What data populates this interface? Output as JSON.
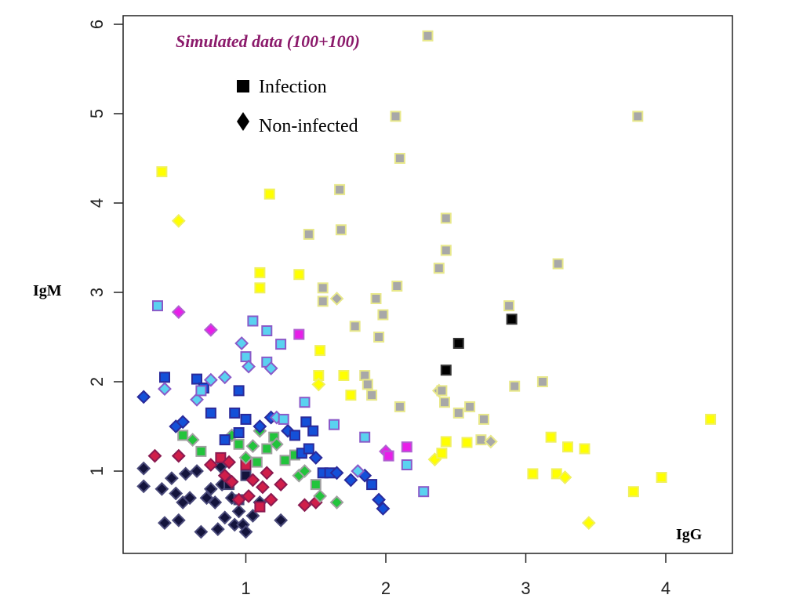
{
  "chart_data": {
    "type": "scatter",
    "title": "Simulated data (100+100)",
    "xlabel": "IgG",
    "ylabel": "IgM",
    "xlim": [
      0.2,
      4.5
    ],
    "ylim": [
      0.1,
      6.1
    ],
    "xticks": [
      "1",
      "2",
      "3",
      "4"
    ],
    "yticks": [
      "1",
      "2",
      "3",
      "4",
      "5",
      "6"
    ],
    "grid": false,
    "legend_placement": "top-center",
    "legend": [
      {
        "label": "Infection",
        "marker": "square",
        "color": "#000000"
      },
      {
        "label": "Non-infected",
        "marker": "diamond",
        "color": "#000000"
      }
    ],
    "colors": {
      "navy": "#14143c",
      "crimson": "#d01e4a",
      "magenta": "#e81ee8",
      "green": "#22c43c",
      "blue": "#1450d8",
      "cyan": "#5ad2f0",
      "yellow": "#ffff00",
      "gray": "#a8a8a8",
      "black": "#000000"
    },
    "points": [
      {
        "x": 0.27,
        "y": 1.03,
        "m": "d",
        "c": "navy"
      },
      {
        "x": 0.27,
        "y": 0.83,
        "m": "d",
        "c": "navy"
      },
      {
        "x": 0.4,
        "y": 0.8,
        "m": "d",
        "c": "navy"
      },
      {
        "x": 0.42,
        "y": 0.42,
        "m": "d",
        "c": "navy"
      },
      {
        "x": 0.47,
        "y": 0.92,
        "m": "d",
        "c": "navy"
      },
      {
        "x": 0.5,
        "y": 0.75,
        "m": "d",
        "c": "navy"
      },
      {
        "x": 0.52,
        "y": 0.45,
        "m": "d",
        "c": "navy"
      },
      {
        "x": 0.55,
        "y": 0.65,
        "m": "d",
        "c": "navy"
      },
      {
        "x": 0.57,
        "y": 0.97,
        "m": "d",
        "c": "navy"
      },
      {
        "x": 0.6,
        "y": 0.7,
        "m": "d",
        "c": "navy"
      },
      {
        "x": 0.65,
        "y": 1.0,
        "m": "d",
        "c": "navy"
      },
      {
        "x": 0.68,
        "y": 0.32,
        "m": "d",
        "c": "navy"
      },
      {
        "x": 0.72,
        "y": 0.7,
        "m": "d",
        "c": "navy"
      },
      {
        "x": 0.75,
        "y": 0.8,
        "m": "d",
        "c": "navy"
      },
      {
        "x": 0.78,
        "y": 0.65,
        "m": "d",
        "c": "navy"
      },
      {
        "x": 0.8,
        "y": 0.35,
        "m": "d",
        "c": "navy"
      },
      {
        "x": 0.83,
        "y": 0.85,
        "m": "d",
        "c": "navy"
      },
      {
        "x": 0.85,
        "y": 0.48,
        "m": "d",
        "c": "navy"
      },
      {
        "x": 0.9,
        "y": 0.7,
        "m": "d",
        "c": "navy"
      },
      {
        "x": 0.92,
        "y": 0.4,
        "m": "d",
        "c": "navy"
      },
      {
        "x": 0.95,
        "y": 0.55,
        "m": "d",
        "c": "navy"
      },
      {
        "x": 0.98,
        "y": 0.4,
        "m": "d",
        "c": "navy"
      },
      {
        "x": 1.0,
        "y": 0.32,
        "m": "d",
        "c": "navy"
      },
      {
        "x": 1.05,
        "y": 0.5,
        "m": "d",
        "c": "navy"
      },
      {
        "x": 1.1,
        "y": 0.65,
        "m": "d",
        "c": "navy"
      },
      {
        "x": 1.25,
        "y": 0.45,
        "m": "d",
        "c": "navy"
      },
      {
        "x": 0.82,
        "y": 1.05,
        "m": "d",
        "c": "navy"
      },
      {
        "x": 0.88,
        "y": 0.85,
        "m": "s",
        "c": "navy"
      },
      {
        "x": 1.0,
        "y": 0.95,
        "m": "s",
        "c": "navy"
      },
      {
        "x": 0.95,
        "y": 0.68,
        "m": "s",
        "c": "navy"
      },
      {
        "x": 0.35,
        "y": 1.17,
        "m": "d",
        "c": "crimson"
      },
      {
        "x": 0.52,
        "y": 1.17,
        "m": "d",
        "c": "crimson"
      },
      {
        "x": 0.75,
        "y": 1.07,
        "m": "d",
        "c": "crimson"
      },
      {
        "x": 0.82,
        "y": 1.15,
        "m": "s",
        "c": "crimson"
      },
      {
        "x": 0.85,
        "y": 0.95,
        "m": "d",
        "c": "crimson"
      },
      {
        "x": 0.88,
        "y": 1.1,
        "m": "d",
        "c": "crimson"
      },
      {
        "x": 0.9,
        "y": 0.88,
        "m": "d",
        "c": "crimson"
      },
      {
        "x": 0.95,
        "y": 0.68,
        "m": "d",
        "c": "crimson"
      },
      {
        "x": 1.0,
        "y": 1.07,
        "m": "s",
        "c": "crimson"
      },
      {
        "x": 1.02,
        "y": 0.72,
        "m": "d",
        "c": "crimson"
      },
      {
        "x": 1.05,
        "y": 0.9,
        "m": "d",
        "c": "crimson"
      },
      {
        "x": 1.1,
        "y": 0.6,
        "m": "s",
        "c": "crimson"
      },
      {
        "x": 1.15,
        "y": 0.98,
        "m": "d",
        "c": "crimson"
      },
      {
        "x": 1.18,
        "y": 0.68,
        "m": "d",
        "c": "crimson"
      },
      {
        "x": 1.25,
        "y": 0.85,
        "m": "d",
        "c": "crimson"
      },
      {
        "x": 1.42,
        "y": 0.62,
        "m": "d",
        "c": "crimson"
      },
      {
        "x": 1.5,
        "y": 0.65,
        "m": "d",
        "c": "crimson"
      },
      {
        "x": 1.12,
        "y": 0.82,
        "m": "d",
        "c": "crimson"
      },
      {
        "x": 0.52,
        "y": 2.78,
        "m": "d",
        "c": "magenta"
      },
      {
        "x": 0.75,
        "y": 2.58,
        "m": "d",
        "c": "magenta"
      },
      {
        "x": 1.38,
        "y": 2.53,
        "m": "s",
        "c": "magenta"
      },
      {
        "x": 2.0,
        "y": 1.22,
        "m": "d",
        "c": "magenta"
      },
      {
        "x": 2.02,
        "y": 1.17,
        "m": "s",
        "c": "magenta"
      },
      {
        "x": 2.15,
        "y": 1.27,
        "m": "s",
        "c": "magenta"
      },
      {
        "x": 0.55,
        "y": 1.4,
        "m": "s",
        "c": "green"
      },
      {
        "x": 0.62,
        "y": 1.35,
        "m": "d",
        "c": "green"
      },
      {
        "x": 0.68,
        "y": 1.22,
        "m": "s",
        "c": "green"
      },
      {
        "x": 0.9,
        "y": 1.4,
        "m": "d",
        "c": "green"
      },
      {
        "x": 0.95,
        "y": 1.3,
        "m": "s",
        "c": "green"
      },
      {
        "x": 1.0,
        "y": 1.15,
        "m": "d",
        "c": "green"
      },
      {
        "x": 1.05,
        "y": 1.28,
        "m": "d",
        "c": "green"
      },
      {
        "x": 1.1,
        "y": 1.45,
        "m": "d",
        "c": "green"
      },
      {
        "x": 1.15,
        "y": 1.25,
        "m": "s",
        "c": "green"
      },
      {
        "x": 1.2,
        "y": 1.38,
        "m": "s",
        "c": "green"
      },
      {
        "x": 1.22,
        "y": 1.3,
        "m": "d",
        "c": "green"
      },
      {
        "x": 1.28,
        "y": 1.12,
        "m": "s",
        "c": "green"
      },
      {
        "x": 1.35,
        "y": 1.18,
        "m": "s",
        "c": "green"
      },
      {
        "x": 1.38,
        "y": 0.95,
        "m": "d",
        "c": "green"
      },
      {
        "x": 1.42,
        "y": 1.0,
        "m": "d",
        "c": "green"
      },
      {
        "x": 1.5,
        "y": 0.85,
        "m": "s",
        "c": "green"
      },
      {
        "x": 1.53,
        "y": 0.72,
        "m": "d",
        "c": "green"
      },
      {
        "x": 1.65,
        "y": 0.65,
        "m": "d",
        "c": "green"
      },
      {
        "x": 1.08,
        "y": 1.1,
        "m": "s",
        "c": "green"
      },
      {
        "x": 0.27,
        "y": 1.83,
        "m": "d",
        "c": "blue"
      },
      {
        "x": 0.42,
        "y": 2.05,
        "m": "s",
        "c": "blue"
      },
      {
        "x": 0.5,
        "y": 1.5,
        "m": "d",
        "c": "blue"
      },
      {
        "x": 0.55,
        "y": 1.55,
        "m": "d",
        "c": "blue"
      },
      {
        "x": 0.65,
        "y": 2.03,
        "m": "s",
        "c": "blue"
      },
      {
        "x": 0.7,
        "y": 1.93,
        "m": "s",
        "c": "blue"
      },
      {
        "x": 0.75,
        "y": 1.65,
        "m": "s",
        "c": "blue"
      },
      {
        "x": 0.85,
        "y": 1.35,
        "m": "s",
        "c": "blue"
      },
      {
        "x": 0.92,
        "y": 1.65,
        "m": "s",
        "c": "blue"
      },
      {
        "x": 0.95,
        "y": 1.9,
        "m": "s",
        "c": "blue"
      },
      {
        "x": 0.95,
        "y": 1.43,
        "m": "s",
        "c": "blue"
      },
      {
        "x": 1.0,
        "y": 1.58,
        "m": "s",
        "c": "blue"
      },
      {
        "x": 1.1,
        "y": 1.5,
        "m": "d",
        "c": "blue"
      },
      {
        "x": 1.18,
        "y": 1.6,
        "m": "d",
        "c": "blue"
      },
      {
        "x": 1.3,
        "y": 1.45,
        "m": "d",
        "c": "blue"
      },
      {
        "x": 1.35,
        "y": 1.4,
        "m": "s",
        "c": "blue"
      },
      {
        "x": 1.4,
        "y": 1.2,
        "m": "s",
        "c": "blue"
      },
      {
        "x": 1.43,
        "y": 1.55,
        "m": "s",
        "c": "blue"
      },
      {
        "x": 1.45,
        "y": 1.25,
        "m": "s",
        "c": "blue"
      },
      {
        "x": 1.48,
        "y": 1.45,
        "m": "s",
        "c": "blue"
      },
      {
        "x": 1.5,
        "y": 1.15,
        "m": "d",
        "c": "blue"
      },
      {
        "x": 1.55,
        "y": 0.98,
        "m": "s",
        "c": "blue"
      },
      {
        "x": 1.6,
        "y": 0.98,
        "m": "s",
        "c": "blue"
      },
      {
        "x": 1.65,
        "y": 0.98,
        "m": "d",
        "c": "blue"
      },
      {
        "x": 1.75,
        "y": 0.9,
        "m": "d",
        "c": "blue"
      },
      {
        "x": 1.85,
        "y": 0.95,
        "m": "d",
        "c": "blue"
      },
      {
        "x": 1.9,
        "y": 0.85,
        "m": "s",
        "c": "blue"
      },
      {
        "x": 1.95,
        "y": 0.68,
        "m": "d",
        "c": "blue"
      },
      {
        "x": 1.98,
        "y": 0.58,
        "m": "d",
        "c": "blue"
      },
      {
        "x": 0.37,
        "y": 2.85,
        "m": "s",
        "c": "cyan"
      },
      {
        "x": 0.42,
        "y": 1.92,
        "m": "d",
        "c": "cyan"
      },
      {
        "x": 0.65,
        "y": 1.8,
        "m": "d",
        "c": "cyan"
      },
      {
        "x": 0.68,
        "y": 1.9,
        "m": "s",
        "c": "cyan"
      },
      {
        "x": 0.75,
        "y": 2.02,
        "m": "d",
        "c": "cyan"
      },
      {
        "x": 0.85,
        "y": 2.05,
        "m": "d",
        "c": "cyan"
      },
      {
        "x": 0.97,
        "y": 2.43,
        "m": "d",
        "c": "cyan"
      },
      {
        "x": 1.0,
        "y": 2.28,
        "m": "s",
        "c": "cyan"
      },
      {
        "x": 1.02,
        "y": 2.17,
        "m": "d",
        "c": "cyan"
      },
      {
        "x": 1.05,
        "y": 2.68,
        "m": "s",
        "c": "cyan"
      },
      {
        "x": 1.15,
        "y": 2.57,
        "m": "s",
        "c": "cyan"
      },
      {
        "x": 1.15,
        "y": 2.22,
        "m": "s",
        "c": "cyan"
      },
      {
        "x": 1.18,
        "y": 2.15,
        "m": "d",
        "c": "cyan"
      },
      {
        "x": 1.22,
        "y": 1.6,
        "m": "d",
        "c": "cyan"
      },
      {
        "x": 1.25,
        "y": 2.42,
        "m": "s",
        "c": "cyan"
      },
      {
        "x": 1.27,
        "y": 1.58,
        "m": "s",
        "c": "cyan"
      },
      {
        "x": 1.42,
        "y": 1.77,
        "m": "s",
        "c": "cyan"
      },
      {
        "x": 1.63,
        "y": 1.52,
        "m": "s",
        "c": "cyan"
      },
      {
        "x": 1.8,
        "y": 1.0,
        "m": "d",
        "c": "cyan"
      },
      {
        "x": 1.85,
        "y": 1.38,
        "m": "s",
        "c": "cyan"
      },
      {
        "x": 2.15,
        "y": 1.07,
        "m": "s",
        "c": "cyan"
      },
      {
        "x": 2.27,
        "y": 0.77,
        "m": "s",
        "c": "cyan"
      },
      {
        "x": 0.4,
        "y": 4.35,
        "m": "s",
        "c": "yellow"
      },
      {
        "x": 0.52,
        "y": 3.8,
        "m": "d",
        "c": "yellow"
      },
      {
        "x": 1.1,
        "y": 3.22,
        "m": "s",
        "c": "yellow"
      },
      {
        "x": 1.1,
        "y": 3.05,
        "m": "s",
        "c": "yellow"
      },
      {
        "x": 1.17,
        "y": 4.1,
        "m": "s",
        "c": "yellow"
      },
      {
        "x": 1.38,
        "y": 3.2,
        "m": "s",
        "c": "yellow"
      },
      {
        "x": 1.53,
        "y": 2.35,
        "m": "s",
        "c": "yellow"
      },
      {
        "x": 1.52,
        "y": 2.07,
        "m": "s",
        "c": "yellow"
      },
      {
        "x": 1.52,
        "y": 1.97,
        "m": "d",
        "c": "yellow"
      },
      {
        "x": 1.7,
        "y": 2.07,
        "m": "s",
        "c": "yellow"
      },
      {
        "x": 1.75,
        "y": 1.85,
        "m": "s",
        "c": "yellow"
      },
      {
        "x": 2.35,
        "y": 1.13,
        "m": "d",
        "c": "yellow"
      },
      {
        "x": 2.4,
        "y": 1.2,
        "m": "s",
        "c": "yellow"
      },
      {
        "x": 2.43,
        "y": 1.33,
        "m": "s",
        "c": "yellow"
      },
      {
        "x": 2.58,
        "y": 1.32,
        "m": "s",
        "c": "yellow"
      },
      {
        "x": 3.05,
        "y": 0.97,
        "m": "s",
        "c": "yellow"
      },
      {
        "x": 3.18,
        "y": 1.38,
        "m": "s",
        "c": "yellow"
      },
      {
        "x": 3.22,
        "y": 0.97,
        "m": "s",
        "c": "yellow"
      },
      {
        "x": 3.28,
        "y": 0.93,
        "m": "d",
        "c": "yellow"
      },
      {
        "x": 3.3,
        "y": 1.27,
        "m": "s",
        "c": "yellow"
      },
      {
        "x": 3.42,
        "y": 1.25,
        "m": "s",
        "c": "yellow"
      },
      {
        "x": 3.45,
        "y": 0.42,
        "m": "d",
        "c": "yellow"
      },
      {
        "x": 3.77,
        "y": 0.77,
        "m": "s",
        "c": "yellow"
      },
      {
        "x": 3.97,
        "y": 0.93,
        "m": "s",
        "c": "yellow"
      },
      {
        "x": 4.32,
        "y": 1.58,
        "m": "s",
        "c": "yellow"
      },
      {
        "x": 2.3,
        "y": 5.87,
        "m": "s",
        "c": "gray"
      },
      {
        "x": 2.07,
        "y": 4.97,
        "m": "s",
        "c": "gray"
      },
      {
        "x": 2.1,
        "y": 4.5,
        "m": "s",
        "c": "gray"
      },
      {
        "x": 3.8,
        "y": 4.97,
        "m": "s",
        "c": "gray"
      },
      {
        "x": 1.67,
        "y": 4.15,
        "m": "s",
        "c": "gray"
      },
      {
        "x": 1.45,
        "y": 3.65,
        "m": "s",
        "c": "gray"
      },
      {
        "x": 1.68,
        "y": 3.7,
        "m": "s",
        "c": "gray"
      },
      {
        "x": 2.43,
        "y": 3.83,
        "m": "s",
        "c": "gray"
      },
      {
        "x": 2.43,
        "y": 3.47,
        "m": "s",
        "c": "gray"
      },
      {
        "x": 2.38,
        "y": 3.27,
        "m": "s",
        "c": "gray"
      },
      {
        "x": 3.23,
        "y": 3.32,
        "m": "s",
        "c": "gray"
      },
      {
        "x": 1.55,
        "y": 3.05,
        "m": "s",
        "c": "gray"
      },
      {
        "x": 1.55,
        "y": 2.9,
        "m": "s",
        "c": "gray"
      },
      {
        "x": 1.65,
        "y": 2.93,
        "m": "d",
        "c": "gray"
      },
      {
        "x": 1.93,
        "y": 2.93,
        "m": "s",
        "c": "gray"
      },
      {
        "x": 2.08,
        "y": 3.07,
        "m": "s",
        "c": "gray"
      },
      {
        "x": 2.88,
        "y": 2.85,
        "m": "s",
        "c": "gray"
      },
      {
        "x": 1.98,
        "y": 2.75,
        "m": "s",
        "c": "gray"
      },
      {
        "x": 1.78,
        "y": 2.62,
        "m": "s",
        "c": "gray"
      },
      {
        "x": 1.95,
        "y": 2.5,
        "m": "s",
        "c": "gray"
      },
      {
        "x": 1.85,
        "y": 2.07,
        "m": "s",
        "c": "gray"
      },
      {
        "x": 1.87,
        "y": 1.97,
        "m": "s",
        "c": "gray"
      },
      {
        "x": 1.9,
        "y": 1.85,
        "m": "s",
        "c": "gray"
      },
      {
        "x": 2.38,
        "y": 1.9,
        "m": "d",
        "c": "gray"
      },
      {
        "x": 2.4,
        "y": 1.9,
        "m": "s",
        "c": "gray"
      },
      {
        "x": 2.42,
        "y": 1.77,
        "m": "s",
        "c": "gray"
      },
      {
        "x": 2.52,
        "y": 1.65,
        "m": "s",
        "c": "gray"
      },
      {
        "x": 2.6,
        "y": 1.72,
        "m": "s",
        "c": "gray"
      },
      {
        "x": 2.1,
        "y": 1.72,
        "m": "s",
        "c": "gray"
      },
      {
        "x": 2.92,
        "y": 1.95,
        "m": "s",
        "c": "gray"
      },
      {
        "x": 3.12,
        "y": 2.0,
        "m": "s",
        "c": "gray"
      },
      {
        "x": 2.7,
        "y": 1.58,
        "m": "s",
        "c": "gray"
      },
      {
        "x": 2.68,
        "y": 1.35,
        "m": "s",
        "c": "gray"
      },
      {
        "x": 2.75,
        "y": 1.33,
        "m": "d",
        "c": "gray"
      },
      {
        "x": 2.52,
        "y": 2.43,
        "m": "s",
        "c": "black"
      },
      {
        "x": 2.43,
        "y": 2.13,
        "m": "s",
        "c": "black"
      },
      {
        "x": 2.9,
        "y": 2.7,
        "m": "s",
        "c": "black"
      }
    ]
  }
}
